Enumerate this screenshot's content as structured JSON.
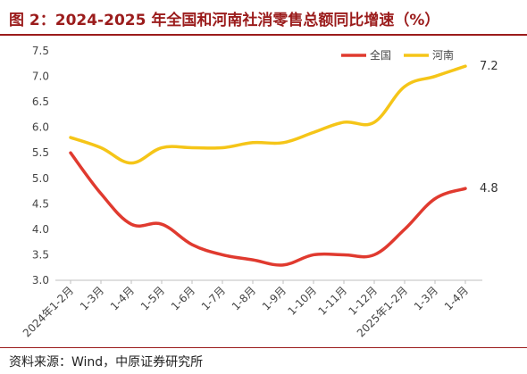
{
  "header": {
    "title": "图 2：2024-2025 年全国和河南社消零售总额同比增速（%）"
  },
  "footer": {
    "source": "资料来源：Wind，中原证券研究所"
  },
  "chart_data": {
    "type": "line",
    "categories": [
      "2024年1-2月",
      "1-3月",
      "1-4月",
      "1-5月",
      "1-6月",
      "1-7月",
      "1-8月",
      "1-9月",
      "1-10月",
      "1-11月",
      "1-12月",
      "2025年1-2月",
      "1-3月",
      "1-4月"
    ],
    "series": [
      {
        "name": "全国",
        "color": "#e03a2f",
        "values": [
          5.5,
          4.7,
          4.1,
          4.1,
          3.7,
          3.5,
          3.4,
          3.3,
          3.5,
          3.5,
          3.5,
          4.0,
          4.6,
          4.8
        ],
        "end_label": "4.8"
      },
      {
        "name": "河南",
        "color": "#f5c518",
        "values": [
          5.8,
          5.6,
          5.3,
          5.6,
          5.6,
          5.6,
          5.7,
          5.7,
          5.9,
          6.1,
          6.1,
          6.8,
          7.0,
          7.2
        ],
        "end_label": "7.2"
      }
    ],
    "ylim": [
      3.0,
      7.5
    ],
    "yticks": [
      "3.0",
      "3.5",
      "4.0",
      "4.5",
      "5.0",
      "5.5",
      "6.0",
      "6.5",
      "7.0",
      "7.5"
    ],
    "legend_position": "top-right",
    "grid": false
  }
}
